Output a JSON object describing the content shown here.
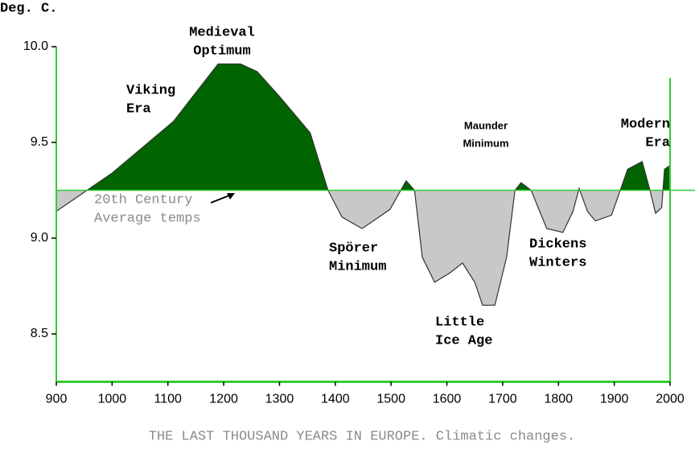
{
  "chart_data": {
    "type": "area",
    "title": "THE LAST THOUSAND YEARS IN EUROPE. Climatic changes.",
    "y_label": "Deg. C.",
    "x": [
      900,
      1000,
      1110,
      1190,
      1230,
      1260,
      1300,
      1355,
      1387,
      1412,
      1448,
      1498,
      1527,
      1542,
      1556,
      1578,
      1606,
      1628,
      1650,
      1664,
      1686,
      1707,
      1722,
      1733,
      1751,
      1779,
      1808,
      1826,
      1837,
      1852,
      1866,
      1895,
      1924,
      1950,
      1964,
      1974,
      1985,
      1990,
      2000
    ],
    "values": [
      9.14,
      9.34,
      9.61,
      9.91,
      9.91,
      9.87,
      9.74,
      9.55,
      9.25,
      9.11,
      9.05,
      9.15,
      9.3,
      9.25,
      8.9,
      8.77,
      8.82,
      8.87,
      8.77,
      8.65,
      8.65,
      8.9,
      9.25,
      9.29,
      9.25,
      9.05,
      9.03,
      9.14,
      9.26,
      9.14,
      9.09,
      9.12,
      9.36,
      9.4,
      9.25,
      9.13,
      9.16,
      9.36,
      9.38
    ],
    "baseline": 9.25,
    "color_above": "#006400",
    "color_below": "#c8c8c8",
    "axis_color": "#33cc33",
    "xlim": [
      900,
      2000
    ],
    "ylim": [
      8.25,
      10.0
    ],
    "xticks": [
      900,
      1000,
      1100,
      1200,
      1300,
      1400,
      1500,
      1600,
      1700,
      1800,
      1900,
      2000
    ],
    "yticks": [
      8.5,
      {
        "value": 9.0,
        "label": "9.0"
      },
      9.5,
      {
        "value": 10.0,
        "label": "10.0"
      }
    ],
    "annotations": [
      [
        "Viking",
        "Era"
      ],
      [
        "Medieval",
        "Optimum"
      ],
      [
        "Maunder",
        "Minimum"
      ],
      [
        "Modern",
        "Era"
      ],
      [
        "20th Century",
        "Average temps"
      ],
      [
        "Spörer",
        "Minimum"
      ],
      [
        "Little",
        "Ice Age"
      ],
      [
        "Dickens",
        "Winters"
      ]
    ]
  }
}
